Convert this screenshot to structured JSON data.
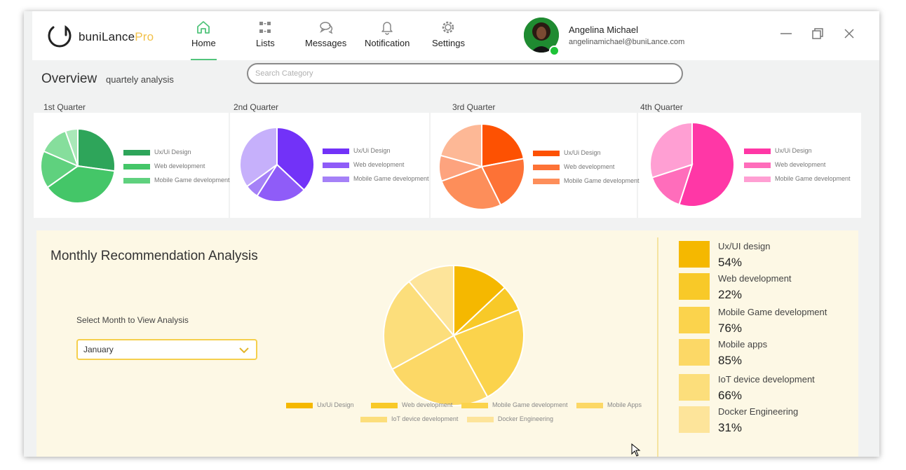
{
  "app": {
    "brand": "buniLance",
    "brand_suffix": "Pro"
  },
  "nav": [
    {
      "label": "Home",
      "icon": "home-icon",
      "active": true
    },
    {
      "label": "Lists",
      "icon": "grid-icon",
      "active": false
    },
    {
      "label": "Messages",
      "icon": "chat-icon",
      "active": false
    },
    {
      "label": "Notification",
      "icon": "bell-icon",
      "active": false
    },
    {
      "label": "Settings",
      "icon": "gear-icon",
      "active": false
    }
  ],
  "user": {
    "name": "Angelina Michael",
    "email": "angelinamichael@buniLance.com",
    "status_color": "#1ec337"
  },
  "overview": {
    "title": "Overview",
    "subtitle": "quartely analysis"
  },
  "search": {
    "placeholder": "Search Category",
    "value": ""
  },
  "quarters": [
    {
      "label": "1st Quarter",
      "legend": [
        "Ux/Ui Design",
        "Web development",
        "Mobile Game development"
      ],
      "colors": [
        "#2ea55a",
        "#44c668",
        "#5fd17e",
        "#86de9c",
        "#a9e8b8"
      ],
      "values": [
        25,
        35,
        15,
        12,
        5
      ]
    },
    {
      "label": "2nd Quarter",
      "legend": [
        "Ux/Ui Design",
        "Web development",
        "Mobile Game development"
      ],
      "colors": [
        "#7232f8",
        "#8f5cf8",
        "#a581f7",
        "#c6b0fb"
      ],
      "values": [
        37,
        22,
        6,
        35
      ]
    },
    {
      "label": "3rd Quarter",
      "legend": [
        "Ux/Ui Design",
        "Web development",
        "Mobile Game development"
      ],
      "colors": [
        "#fd5102",
        "#fd7236",
        "#fd8e5a",
        "#fda37e",
        "#fdb896"
      ],
      "values": [
        18,
        17,
        22,
        8,
        17
      ]
    },
    {
      "label": "4th Quarter",
      "legend": [
        "Ux/Ui Design",
        "Web development",
        "Mobile Game development"
      ],
      "colors": [
        "#ff37a6",
        "#ff6dbb",
        "#ff9fd3"
      ],
      "values": [
        55,
        15,
        30
      ]
    }
  ],
  "monthly": {
    "title": "Monthly Recommendation Analysis",
    "select_label": "Select Month to View Analysis",
    "selected_month": "January",
    "legend": [
      "Ux/Ui Design",
      "Web development",
      "Mobile Game development",
      "Mobile Apps",
      "IoT device development",
      "Docker Engineering"
    ],
    "pie_colors": [
      "#f5b800",
      "#f8c928",
      "#fbd34c",
      "#fcd866",
      "#fcde7b",
      "#fde49a"
    ],
    "pie_values": [
      13,
      6,
      23,
      25,
      22,
      11
    ],
    "stats": [
      {
        "name": "Ux/UI design",
        "percent": "54%",
        "color": "#f5b800"
      },
      {
        "name": "Web development",
        "percent": "22%",
        "color": "#f8c928"
      },
      {
        "name": "Mobile Game development",
        "percent": "76%",
        "color": "#fbd34c"
      },
      {
        "name": "Mobile apps",
        "percent": "85%",
        "color": "#fcd866"
      },
      {
        "name": "IoT device development",
        "percent": "66%",
        "color": "#fcde7b"
      },
      {
        "name": "Docker Engineering",
        "percent": "31%",
        "color": "#fde49a"
      }
    ]
  }
}
